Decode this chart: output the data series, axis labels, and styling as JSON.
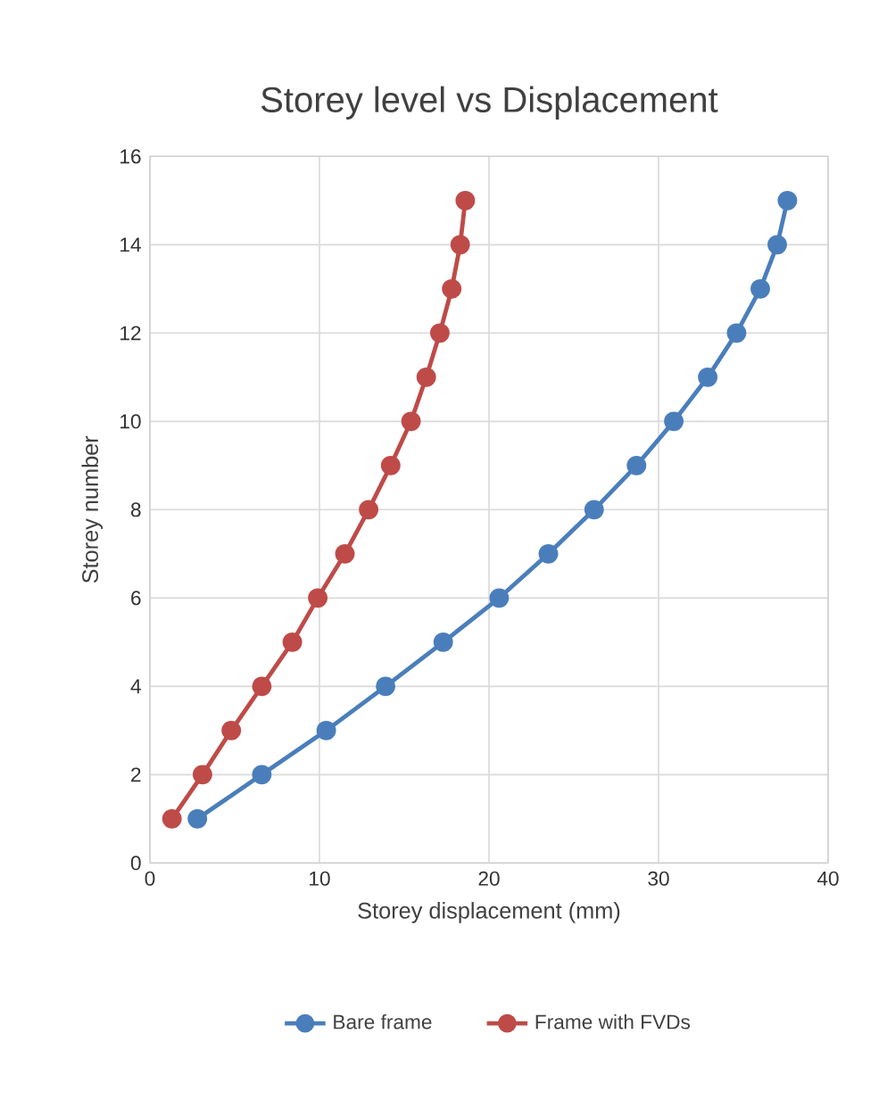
{
  "chart_data": {
    "type": "line",
    "title": "Storey level vs Displacement",
    "xlabel": "Storey displacement (mm)",
    "ylabel": "Storey number",
    "xlim": [
      0,
      40
    ],
    "xticks": [
      0,
      10,
      20,
      30,
      40
    ],
    "ylim": [
      0,
      16
    ],
    "yticks": [
      0,
      2,
      4,
      6,
      8,
      10,
      12,
      14,
      16
    ],
    "grid": true,
    "legend": "bottom",
    "marker": "circle",
    "series": [
      {
        "name": "Bare frame",
        "color": "#4a7ebb",
        "x": [
          2.8,
          6.6,
          10.4,
          13.9,
          17.3,
          20.6,
          23.5,
          26.2,
          28.7,
          30.9,
          32.9,
          34.6,
          36.0,
          37.0,
          37.6
        ],
        "values": [
          1,
          2,
          3,
          4,
          5,
          6,
          7,
          8,
          9,
          10,
          11,
          12,
          13,
          14,
          15
        ]
      },
      {
        "name": "Frame with FVDs",
        "color": "#be4b48",
        "x": [
          1.3,
          3.1,
          4.8,
          6.6,
          8.4,
          9.9,
          11.5,
          12.9,
          14.2,
          15.4,
          16.3,
          17.1,
          17.8,
          18.3,
          18.6
        ],
        "values": [
          1,
          2,
          3,
          4,
          5,
          6,
          7,
          8,
          9,
          10,
          11,
          12,
          13,
          14,
          15
        ]
      }
    ]
  }
}
